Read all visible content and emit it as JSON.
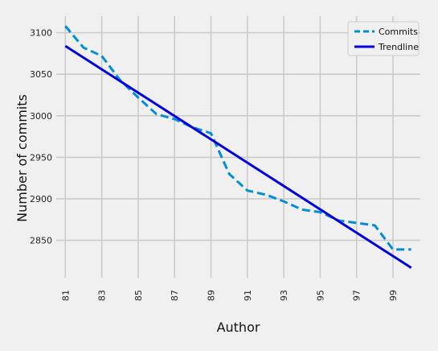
{
  "chart_data": {
    "type": "line",
    "title": "",
    "xlabel": "Author",
    "ylabel": "Number of commits",
    "xlim": [
      80.5,
      100.5
    ],
    "ylim": [
      2805,
      3120
    ],
    "x_ticks": [
      "81",
      "83",
      "85",
      "87",
      "89",
      "91",
      "93",
      "95",
      "97",
      "99"
    ],
    "y_ticks": [
      "2850",
      "2900",
      "2950",
      "3000",
      "3050",
      "3100"
    ],
    "grid": true,
    "legend_position": "top-right",
    "series": [
      {
        "name": "Commits",
        "style": "dashed",
        "color": "#008fd5",
        "x": [
          81,
          82,
          83,
          84,
          85,
          86,
          87,
          88,
          89,
          90,
          91,
          92,
          93,
          94,
          95,
          96,
          97,
          98,
          99,
          100
        ],
        "y": [
          3108,
          3082,
          3072,
          3043,
          3022,
          3002,
          2996,
          2986,
          2979,
          2930,
          2910,
          2905,
          2897,
          2887,
          2884,
          2874,
          2871,
          2868,
          2839,
          2839
        ]
      },
      {
        "name": "Trendline",
        "style": "solid",
        "color": "#0000dd",
        "x": [
          81,
          100
        ],
        "y": [
          3084,
          2817
        ]
      }
    ]
  }
}
